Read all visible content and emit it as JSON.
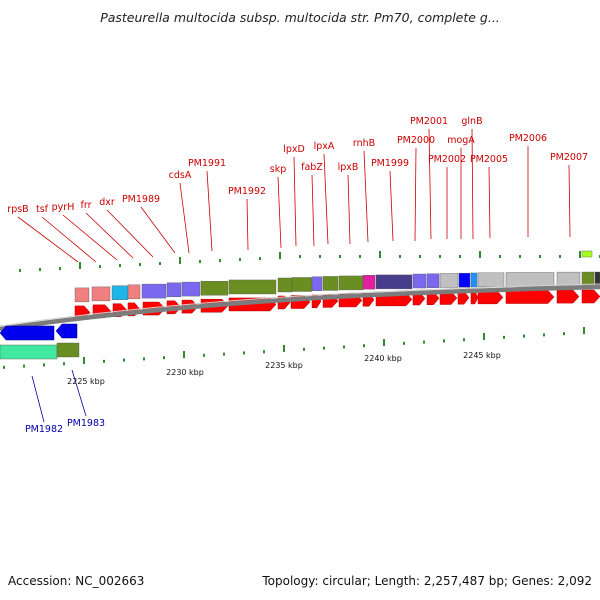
{
  "title": "Pasteurella multocida subsp. multocida str. Pm70, complete g...",
  "footer": {
    "accession": "Accession: NC_002663",
    "topology": "Topology: circular; Length: 2,257,487 bp; Genes: 2,092"
  },
  "colors": {
    "label_red": "#cc0000",
    "label_blue": "#0000aa",
    "forward_arrow": "#ff0000",
    "reverse_arrow": "#0000ee",
    "tick_green": "#2e8b2e",
    "backbone": "#808080"
  },
  "forward_labels": [
    "rpsB",
    "tsf",
    "pyrH",
    "frr",
    "dxr",
    "PM1989",
    "cdsA",
    "PM1991",
    "PM1992",
    "skp",
    "lpxD",
    "fabZ",
    "lpxA",
    "lpxB",
    "rnhB",
    "PM1999",
    "PM2000",
    "PM2001",
    "PM2002",
    "mogA",
    "glnB",
    "PM2005",
    "PM2006",
    "PM2007"
  ],
  "reverse_labels": [
    "PM1982",
    "PM1983"
  ],
  "scale_labels": [
    "2225 kbp",
    "2230 kbp",
    "2235 kbp",
    "2240 kbp",
    "2245 kbp"
  ]
}
